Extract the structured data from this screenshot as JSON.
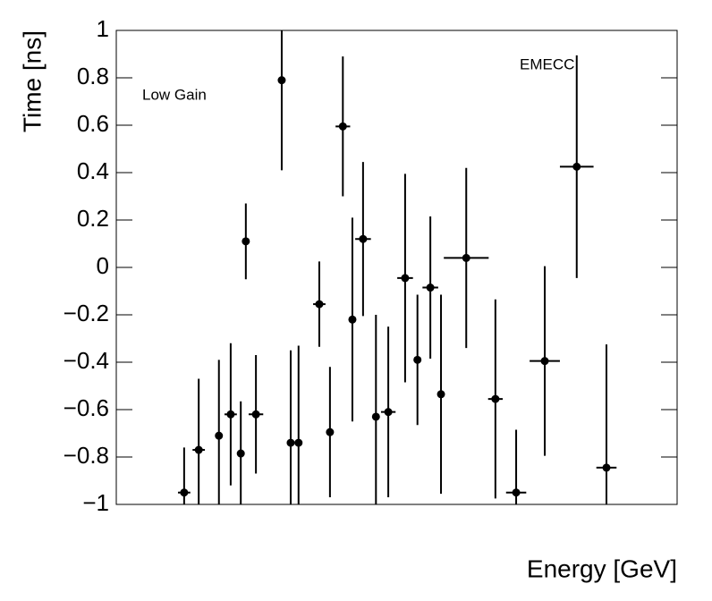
{
  "chart_data": {
    "type": "scatter",
    "x_label": "Energy [GeV]",
    "y_label": "Time [ns]",
    "annotations": [
      "Low Gain",
      "EMECC"
    ],
    "xlim": [
      0,
      100
    ],
    "ylim": [
      -1,
      1
    ],
    "yticks": [
      {
        "value": -1,
        "label": "−1"
      },
      {
        "value": -0.8,
        "label": "−0.8"
      },
      {
        "value": -0.6,
        "label": "−0.6"
      },
      {
        "value": -0.4,
        "label": "−0.4"
      },
      {
        "value": -0.2,
        "label": "−0.2"
      },
      0,
      0.2,
      0.4,
      0.6,
      0.8,
      1
    ],
    "color": "#000000",
    "series": [
      {
        "x": [
          12.1,
          14.7,
          18.3,
          20.4,
          22.2,
          23.1,
          24.9,
          29.5,
          31.1,
          32.5,
          36.2,
          38.1,
          40.4,
          42.1,
          44.0,
          46.3,
          48.5,
          51.5,
          53.7,
          56.0,
          57.9,
          62.4,
          67.6,
          71.3,
          76.4,
          82.1,
          87.4
        ],
        "x_errors": [
          1.1,
          1.1,
          0.6,
          1.1,
          0.6,
          0.6,
          1.3,
          0.6,
          0.6,
          0.6,
          1.1,
          0.6,
          1.3,
          0.6,
          1.4,
          0.6,
          1.3,
          1.4,
          0.6,
          1.4,
          0.6,
          4.0,
          1.3,
          1.8,
          2.7,
          3.0,
          1.8
        ],
        "values": [
          -0.95,
          -0.77,
          -0.71,
          -0.62,
          -0.785,
          0.11,
          -0.62,
          0.79,
          -0.74,
          -0.74,
          -0.155,
          -0.695,
          0.595,
          -0.22,
          0.12,
          -0.63,
          -0.61,
          -0.045,
          -0.39,
          -0.085,
          -0.535,
          0.04,
          -0.555,
          -0.95,
          -0.395,
          0.425,
          -0.845
        ],
        "errors": [
          0.19,
          0.3,
          0.32,
          0.3,
          0.22,
          0.16,
          0.25,
          0.38,
          0.39,
          0.41,
          0.18,
          0.275,
          0.295,
          0.43,
          0.325,
          0.43,
          0.36,
          0.44,
          0.275,
          0.3,
          0.42,
          0.38,
          0.42,
          0.265,
          0.4,
          0.47,
          0.52
        ]
      }
    ]
  }
}
